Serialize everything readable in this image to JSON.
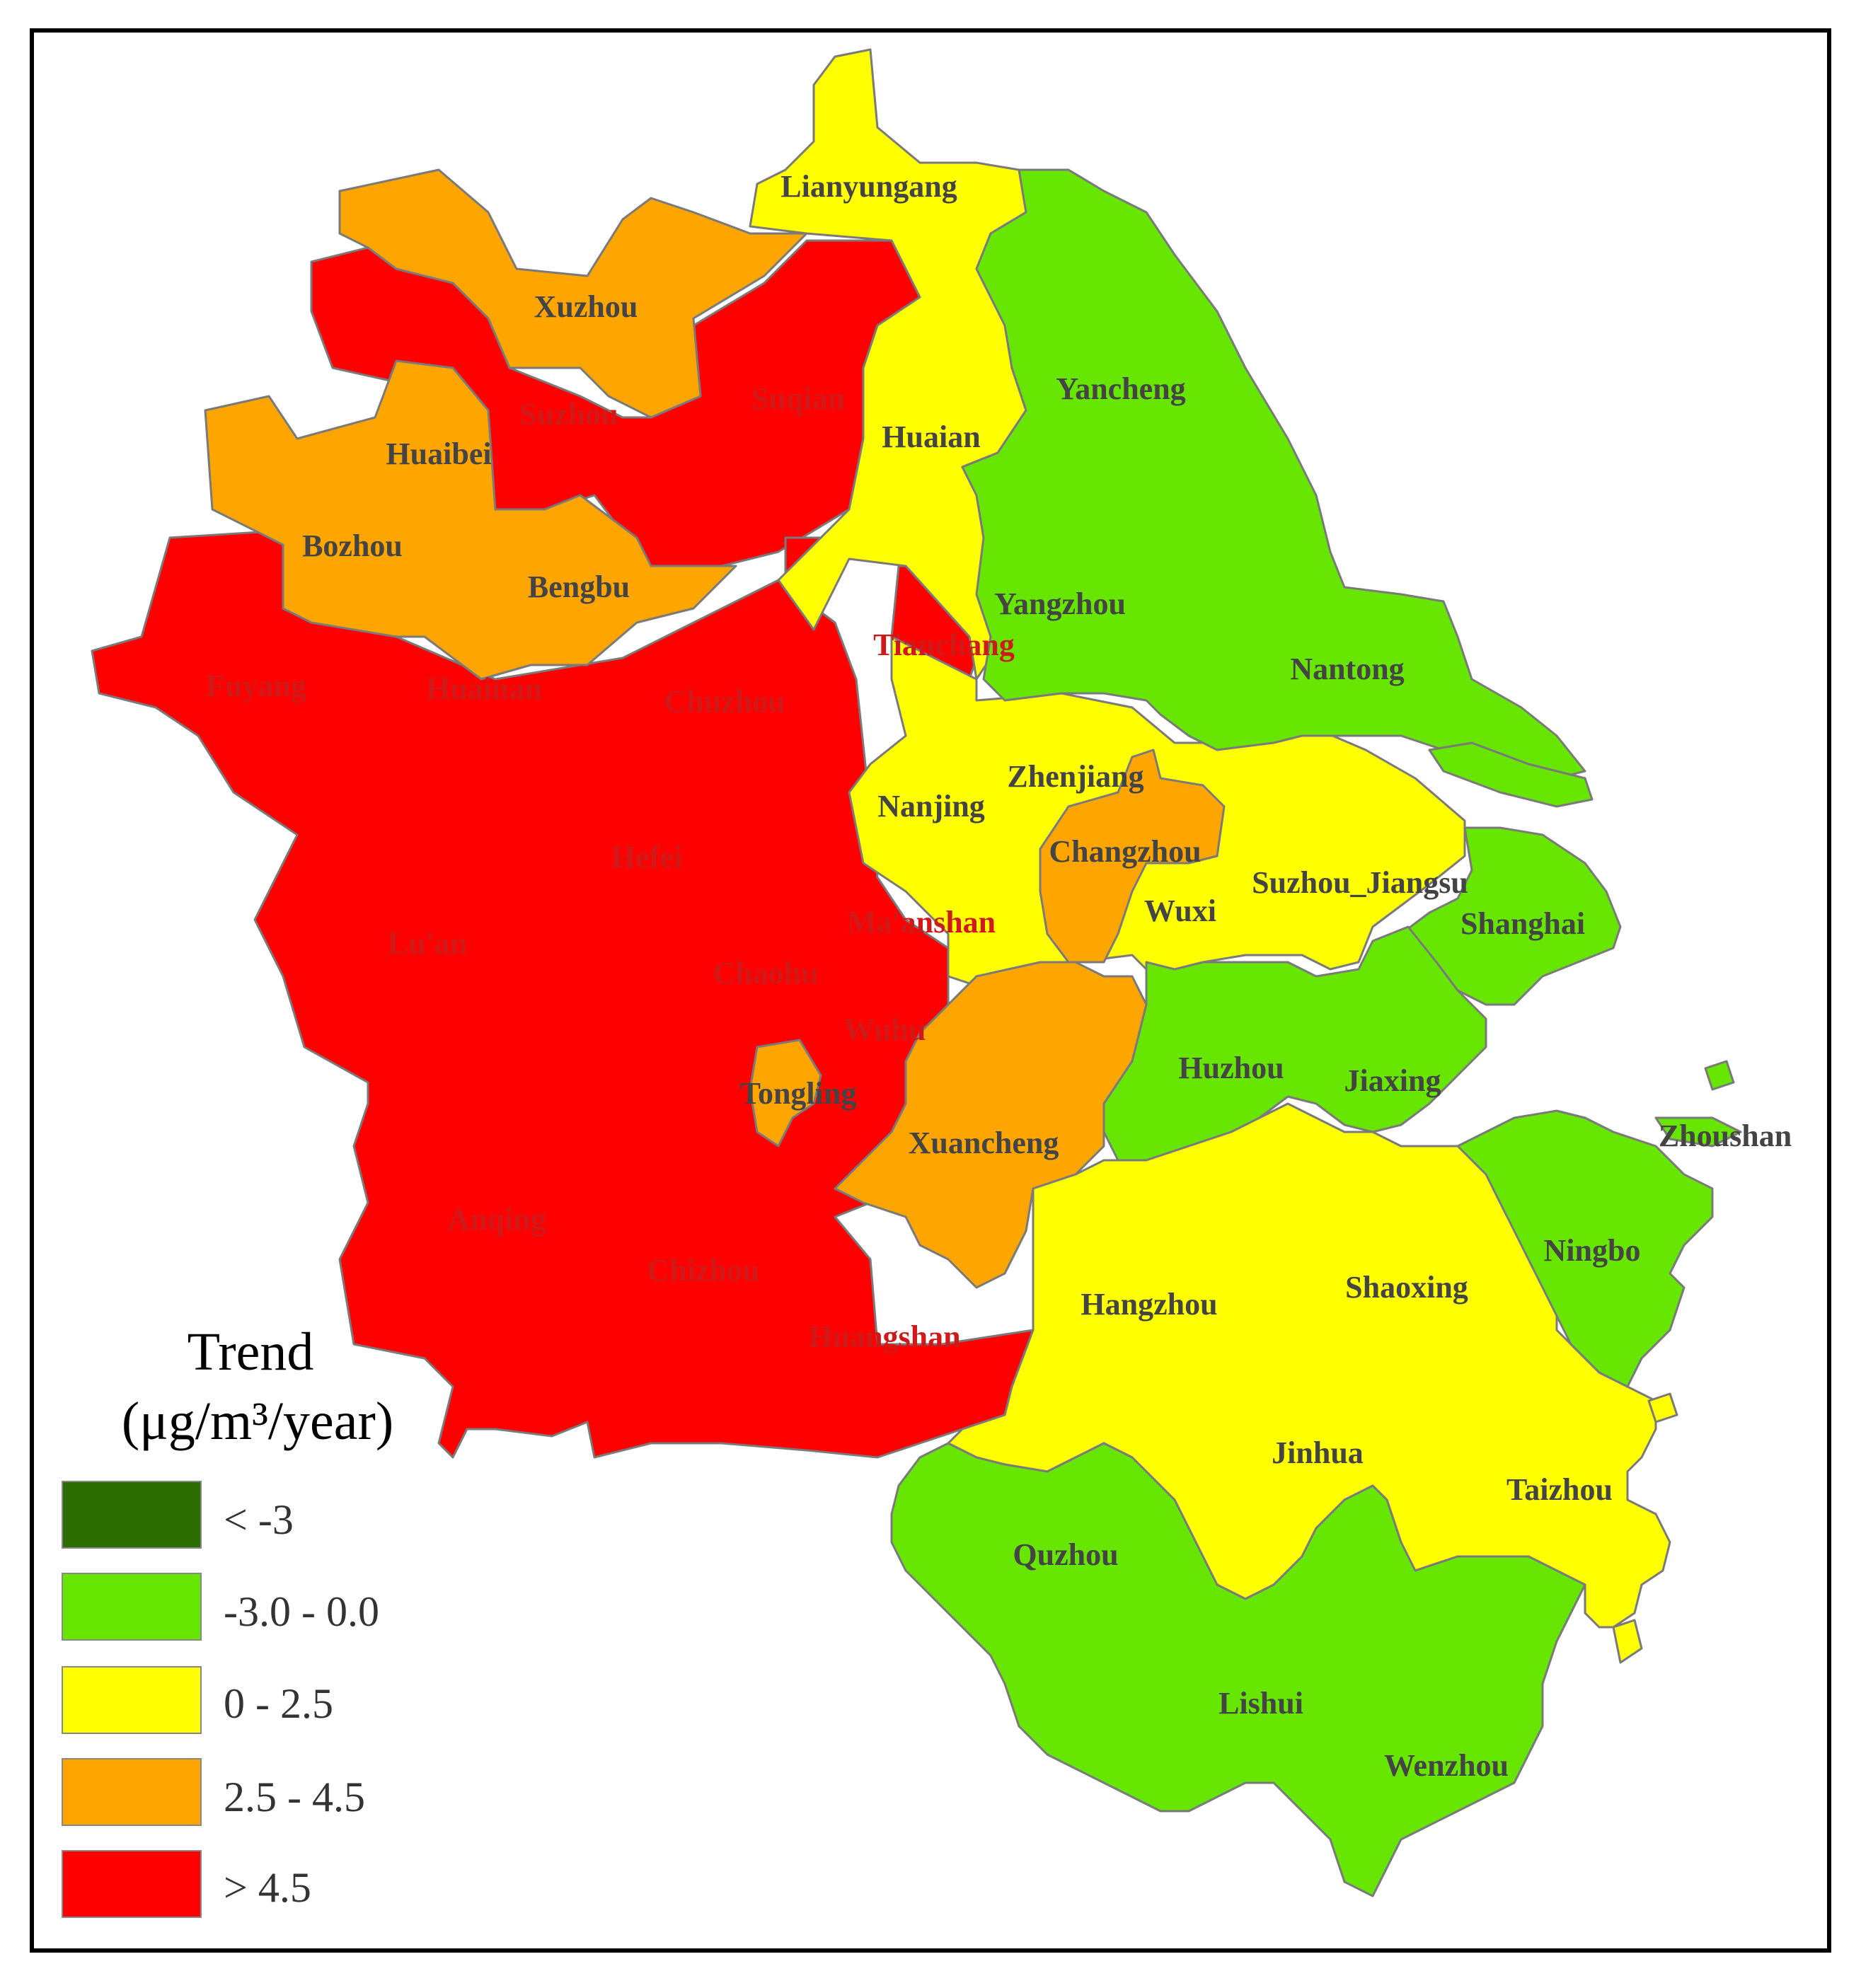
{
  "colors": {
    "c1": "#2e6e00",
    "c2": "#66e600",
    "c3": "#ffff00",
    "c4": "#ffa500",
    "c5": "#ff0000"
  },
  "legend": {
    "title": "Trend",
    "unit": "(μg/m³/year)",
    "classes": [
      {
        "label": "< -3",
        "color": "#2e6e00"
      },
      {
        "label": "-3.0 - 0.0",
        "color": "#66e600"
      },
      {
        "label": "0 - 2.5",
        "color": "#ffff00"
      },
      {
        "label": "2.5 - 4.5",
        "color": "#ffa500"
      },
      {
        "label": "> 4.5",
        "color": "#ff0000"
      }
    ]
  },
  "cities": [
    {
      "name": "Lianyungang",
      "class": "0 - 2.5"
    },
    {
      "name": "Xuzhou",
      "class": "2.5 - 4.5"
    },
    {
      "name": "Suqian",
      "class": "> 4.5"
    },
    {
      "name": "Yancheng",
      "class": "-3.0 - 0.0"
    },
    {
      "name": "Suzhou",
      "class": "> 4.5"
    },
    {
      "name": "Huaibei",
      "class": "2.5 - 4.5"
    },
    {
      "name": "Huaian",
      "class": "0 - 2.5"
    },
    {
      "name": "Bozhou",
      "class": "2.5 - 4.5"
    },
    {
      "name": "Bengbu",
      "class": "2.5 - 4.5"
    },
    {
      "name": "Yangzhou",
      "class": "-3.0 - 0.0"
    },
    {
      "name": "Tianchang",
      "class": "> 4.5"
    },
    {
      "name": "Nantong",
      "class": "-3.0 - 0.0"
    },
    {
      "name": "Fuyang",
      "class": "> 4.5"
    },
    {
      "name": "Huainan",
      "class": "> 4.5"
    },
    {
      "name": "Chuzhou",
      "class": "> 4.5"
    },
    {
      "name": "Zhenjiang",
      "class": "0 - 2.5"
    },
    {
      "name": "Nanjing",
      "class": "0 - 2.5"
    },
    {
      "name": "Hefei",
      "class": "> 4.5"
    },
    {
      "name": "Changzhou",
      "class": "2.5 - 4.5"
    },
    {
      "name": "Suzhou_Jiangsu",
      "class": "0 - 2.5"
    },
    {
      "name": "Shanghai",
      "class": "-3.0 - 0.0"
    },
    {
      "name": "Lu'an",
      "class": "> 4.5"
    },
    {
      "name": "Ma'anshan",
      "class": "> 4.5"
    },
    {
      "name": "Wuxi",
      "class": "0 - 2.5"
    },
    {
      "name": "Chaohu",
      "class": "> 4.5"
    },
    {
      "name": "Wuhu",
      "class": "> 4.5"
    },
    {
      "name": "Huzhou",
      "class": "-3.0 - 0.0"
    },
    {
      "name": "Jiaxing",
      "class": "-3.0 - 0.0"
    },
    {
      "name": "Tongling",
      "class": "2.5 - 4.5"
    },
    {
      "name": "Zhoushan",
      "class": "-3.0 - 0.0"
    },
    {
      "name": "Xuancheng",
      "class": "2.5 - 4.5"
    },
    {
      "name": "Anqing",
      "class": "> 4.5"
    },
    {
      "name": "Ningbo",
      "class": "-3.0 - 0.0"
    },
    {
      "name": "Chizhou",
      "class": "> 4.5"
    },
    {
      "name": "Shaoxing",
      "class": "0 - 2.5"
    },
    {
      "name": "Hangzhou",
      "class": "0 - 2.5"
    },
    {
      "name": "Huangshan",
      "class": "> 4.5"
    },
    {
      "name": "Jinhua",
      "class": "0 - 2.5"
    },
    {
      "name": "Taizhou",
      "class": "0 - 2.5"
    },
    {
      "name": "Quzhou",
      "class": "-3.0 - 0.0"
    },
    {
      "name": "Lishui",
      "class": "-3.0 - 0.0"
    },
    {
      "name": "Wenzhou",
      "class": "-3.0 - 0.0"
    }
  ]
}
